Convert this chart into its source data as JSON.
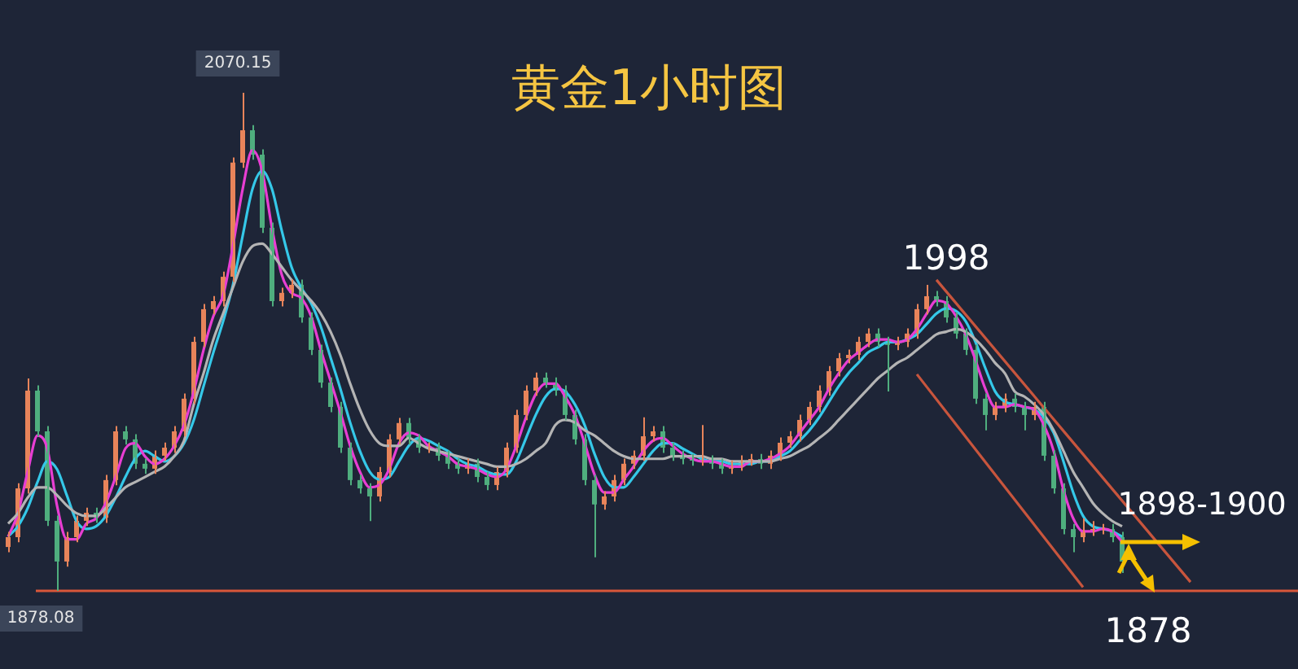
{
  "chart_data": {
    "type": "candlestick",
    "title": "黄金1小时图",
    "colors": [
      "#e8845a",
      "#e8845a",
      "#e8845a",
      "#4fae7e",
      "#4fae7e",
      "#4fae7e",
      "#e8845a",
      "#e8845a",
      "#e8845a",
      "#4fae7e",
      "#e8845a",
      "#e8845a",
      "#4fae7e",
      "#4fae7e",
      "#4fae7e",
      "#e8845a",
      "#e8845a",
      "#e8845a",
      "#e8845a",
      "#e8845a",
      "#e8845a",
      "#e8845a",
      "#e8845a",
      "#e8845a",
      "#e8845a",
      "#4fae7e",
      "#4fae7e",
      "#4fae7e",
      "#e8845a",
      "#e8845a",
      "#4fae7e",
      "#4fae7e",
      "#4fae7e",
      "#4fae7e",
      "#4fae7e",
      "#4fae7e",
      "#4fae7e",
      "#4fae7e",
      "#e8845a",
      "#e8845a",
      "#e8845a",
      "#4fae7e",
      "#4fae7e",
      "#e8845a",
      "#4fae7e",
      "#4fae7e",
      "#4fae7e",
      "#e8845a",
      "#4fae7e",
      "#4fae7e",
      "#e8845a",
      "#e8845a",
      "#e8845a",
      "#e8845a",
      "#e8845a",
      "#4fae7e",
      "#4fae7e",
      "#4fae7e",
      "#4fae7e",
      "#4fae7e",
      "#4fae7e",
      "#e8845a",
      "#e8845a",
      "#e8845a",
      "#e8845a",
      "#e8845a",
      "#e8845a",
      "#4fae7e",
      "#4fae7e",
      "#4fae7e",
      "#4fae7e",
      "#e8845a",
      "#4fae7e",
      "#4fae7e",
      "#e8845a",
      "#e8845a",
      "#e8845a",
      "#4fae7e",
      "#e8845a",
      "#e8845a",
      "#e8845a",
      "#e8845a",
      "#e8845a",
      "#e8845a",
      "#e8845a",
      "#e8845a",
      "#e8845a",
      "#e8845a",
      "#e8845a",
      "#4fae7e",
      "#4fae7e",
      "#e8845a",
      "#e8845a",
      "#e8845a",
      "#e8845a",
      "#4fae7e",
      "#4fae7e",
      "#4fae7e",
      "#4fae7e",
      "#4fae7e",
      "#4fae7e",
      "#e8845a",
      "#e8845a",
      "#4fae7e",
      "#4fae7e",
      "#e8845a",
      "#4fae7e",
      "#4fae7e",
      "#4fae7e",
      "#4fae7e",
      "#e8845a",
      "#e8845a",
      "#e8845a",
      "#4fae7e",
      "#4fae7e",
      null,
      null,
      null,
      null,
      null,
      null,
      null,
      null,
      null,
      null
    ],
    "legend": false,
    "tick_labels": false,
    "grid": false,
    "marker": "none",
    "categories": [
      null,
      null,
      null,
      null,
      null,
      null,
      null,
      null,
      null,
      null,
      null,
      null,
      null,
      null,
      null,
      null,
      null,
      null,
      null,
      null,
      null,
      null,
      null,
      null,
      null,
      null,
      null,
      null,
      null,
      null,
      null,
      null,
      null,
      null,
      null,
      null,
      null,
      null,
      null,
      null,
      null,
      null,
      null,
      null,
      null,
      null,
      null,
      null,
      null,
      null,
      null,
      null,
      null,
      null,
      null,
      null,
      null,
      null,
      null,
      null,
      null,
      null,
      null,
      null,
      null,
      null,
      null,
      null,
      null,
      null,
      null,
      null,
      null,
      null,
      null,
      null,
      null,
      null,
      null,
      null,
      null,
      null,
      null,
      null,
      null,
      null,
      null,
      null,
      null,
      null,
      null,
      null,
      null,
      null,
      null,
      null,
      null,
      null,
      null,
      null,
      null,
      null,
      null,
      null,
      null,
      null,
      null,
      null,
      null,
      null,
      null,
      null,
      null,
      null,
      null,
      null,
      null,
      null,
      null,
      null,
      null,
      null,
      null,
      null,
      null
    ],
    "ohlc": [
      [
        1895.0,
        1900.8,
        1893.0,
        1898.8
      ],
      [
        1898.8,
        1919.6,
        1896.8,
        1917.6
      ],
      [
        1917.6,
        1960.0,
        1915.6,
        1955.3
      ],
      [
        1955.3,
        1957.3,
        1937.6,
        1939.6
      ],
      [
        1939.6,
        1941.6,
        1903.1,
        1905.1
      ],
      [
        1905.1,
        1907.1,
        1878.08,
        1889.4
      ],
      [
        1889.4,
        1900.8,
        1887.4,
        1898.8
      ],
      [
        1898.8,
        1907.1,
        1896.8,
        1905.1
      ],
      [
        1905.1,
        1910.2,
        1903.1,
        1908.2
      ],
      [
        1908.2,
        1910.2,
        1904.3,
        1906.3
      ],
      [
        1906.3,
        1922.8,
        1904.3,
        1920.8
      ],
      [
        1920.8,
        1941.6,
        1918.8,
        1939.6
      ],
      [
        1939.6,
        1941.6,
        1934.5,
        1936.5
      ],
      [
        1936.5,
        1938.5,
        1925.1,
        1927.1
      ],
      [
        1927.1,
        1929.1,
        1923.2,
        1925.2
      ],
      [
        1925.2,
        1932.2,
        1923.2,
        1930.2
      ],
      [
        1930.2,
        1935.3,
        1928.2,
        1933.3
      ],
      [
        1933.3,
        1941.6,
        1931.3,
        1939.6
      ],
      [
        1939.6,
        1954.2,
        1937.6,
        1952.2
      ],
      [
        1952.2,
        1976.1,
        1950.2,
        1974.1
      ],
      [
        1974.1,
        1988.7,
        1972.1,
        1986.7
      ],
      [
        1986.7,
        1991.8,
        1984.7,
        1989.8
      ],
      [
        1989.8,
        2001.2,
        1987.8,
        1999.2
      ],
      [
        1999.2,
        2045.2,
        1997.2,
        2043.2
      ],
      [
        2043.2,
        2070.15,
        2041.2,
        2055.7
      ],
      [
        2055.7,
        2057.7,
        2044.3,
        2046.3
      ],
      [
        2046.3,
        2048.3,
        2016.1,
        2018.1
      ],
      [
        2018.1,
        2020.1,
        1987.8,
        1989.8
      ],
      [
        1989.8,
        1995.0,
        1987.8,
        1993.0
      ],
      [
        1993.0,
        1998.1,
        1991.0,
        1996.1
      ],
      [
        1996.1,
        1998.1,
        1981.5,
        1983.5
      ],
      [
        1983.5,
        1985.5,
        1969.0,
        1971.0
      ],
      [
        1971.0,
        1973.0,
        1956.4,
        1958.4
      ],
      [
        1958.4,
        1960.4,
        1947.0,
        1949.0
      ],
      [
        1949.0,
        1951.0,
        1931.3,
        1933.3
      ],
      [
        1933.3,
        1935.3,
        1918.8,
        1920.8
      ],
      [
        1920.8,
        1922.8,
        1915.6,
        1917.6
      ],
      [
        1917.6,
        1919.6,
        1905.0,
        1914.5
      ],
      [
        1914.5,
        1925.9,
        1912.5,
        1923.9
      ],
      [
        1923.9,
        1938.5,
        1921.9,
        1936.5
      ],
      [
        1936.5,
        1944.8,
        1934.5,
        1942.8
      ],
      [
        1942.8,
        1944.8,
        1934.5,
        1936.5
      ],
      [
        1936.5,
        1938.5,
        1931.3,
        1933.3
      ],
      [
        1933.3,
        1935.3,
        1931.3,
        1933.3
      ],
      [
        1933.3,
        1935.3,
        1928.2,
        1930.2
      ],
      [
        1930.2,
        1932.2,
        1925.1,
        1927.1
      ],
      [
        1927.1,
        1929.1,
        1923.2,
        1925.2
      ],
      [
        1925.2,
        1929.1,
        1923.2,
        1927.1
      ],
      [
        1927.1,
        1929.1,
        1920.0,
        1922.0
      ],
      [
        1922.0,
        1924.0,
        1916.9,
        1918.9
      ],
      [
        1918.9,
        1925.9,
        1916.9,
        1923.9
      ],
      [
        1923.9,
        1935.3,
        1921.9,
        1933.3
      ],
      [
        1933.3,
        1947.9,
        1931.3,
        1945.9
      ],
      [
        1945.9,
        1957.3,
        1943.9,
        1955.3
      ],
      [
        1955.3,
        1962.3,
        1953.3,
        1960.3
      ],
      [
        1960.3,
        1962.3,
        1956.4,
        1958.4
      ],
      [
        1958.4,
        1960.4,
        1953.3,
        1955.3
      ],
      [
        1955.3,
        1957.3,
        1943.9,
        1945.9
      ],
      [
        1945.9,
        1947.9,
        1934.5,
        1936.5
      ],
      [
        1936.5,
        1938.5,
        1918.8,
        1920.8
      ],
      [
        1920.8,
        1922.8,
        1891.0,
        1911.4
      ],
      [
        1911.4,
        1916.5,
        1909.4,
        1914.5
      ],
      [
        1914.5,
        1922.8,
        1912.5,
        1920.8
      ],
      [
        1920.8,
        1929.1,
        1918.8,
        1927.1
      ],
      [
        1927.1,
        1932.2,
        1925.1,
        1930.2
      ],
      [
        1930.2,
        1945.0,
        1928.2,
        1937.7
      ],
      [
        1937.7,
        1941.6,
        1935.7,
        1939.6
      ],
      [
        1939.6,
        1941.6,
        1931.3,
        1933.3
      ],
      [
        1933.3,
        1935.3,
        1928.2,
        1930.2
      ],
      [
        1930.2,
        1932.2,
        1926.9,
        1928.9
      ],
      [
        1928.9,
        1930.9,
        1926.3,
        1928.3
      ],
      [
        1928.3,
        1942.0,
        1926.3,
        1928.3
      ],
      [
        1928.3,
        1930.3,
        1925.1,
        1927.1
      ],
      [
        1927.1,
        1929.1,
        1923.2,
        1925.2
      ],
      [
        1925.2,
        1928.4,
        1923.2,
        1926.4
      ],
      [
        1926.4,
        1930.3,
        1924.4,
        1928.3
      ],
      [
        1928.3,
        1930.9,
        1926.3,
        1928.9
      ],
      [
        1928.9,
        1930.9,
        1925.1,
        1927.1
      ],
      [
        1927.1,
        1932.2,
        1925.1,
        1930.2
      ],
      [
        1930.2,
        1937.2,
        1928.2,
        1935.2
      ],
      [
        1935.2,
        1939.7,
        1933.2,
        1937.7
      ],
      [
        1937.7,
        1946.0,
        1935.7,
        1944.0
      ],
      [
        1944.0,
        1951.0,
        1942.0,
        1949.0
      ],
      [
        1949.0,
        1957.3,
        1947.0,
        1955.3
      ],
      [
        1955.3,
        1964.8,
        1953.3,
        1962.8
      ],
      [
        1962.8,
        1969.8,
        1960.8,
        1967.8
      ],
      [
        1967.8,
        1971.1,
        1965.8,
        1969.1
      ],
      [
        1969.1,
        1976.1,
        1967.1,
        1974.1
      ],
      [
        1974.1,
        1979.3,
        1972.1,
        1977.3
      ],
      [
        1977.3,
        1979.3,
        1972.1,
        1974.1
      ],
      [
        1974.1,
        1976.1,
        1955.0,
        1972.9
      ],
      [
        1972.9,
        1976.1,
        1970.9,
        1974.1
      ],
      [
        1974.1,
        1979.3,
        1972.1,
        1977.3
      ],
      [
        1977.3,
        1988.7,
        1975.3,
        1986.7
      ],
      [
        1986.7,
        1996.1,
        1984.7,
        1991.7
      ],
      [
        1991.7,
        1993.7,
        1987.8,
        1989.8
      ],
      [
        1989.8,
        1991.8,
        1981.5,
        1983.5
      ],
      [
        1983.5,
        1985.5,
        1975.3,
        1977.3
      ],
      [
        1977.3,
        1979.3,
        1969.0,
        1971.0
      ],
      [
        1971.0,
        1973.0,
        1950.2,
        1952.2
      ],
      [
        1952.2,
        1954.2,
        1940.0,
        1945.9
      ],
      [
        1945.9,
        1951.0,
        1943.9,
        1949.0
      ],
      [
        1949.0,
        1954.2,
        1947.0,
        1952.2
      ],
      [
        1952.2,
        1954.2,
        1947.0,
        1949.0
      ],
      [
        1949.0,
        1951.0,
        1940.0,
        1945.9
      ],
      [
        1945.9,
        1951.0,
        1943.9,
        1949.0
      ],
      [
        1949.0,
        1951.0,
        1928.2,
        1930.2
      ],
      [
        1930.2,
        1932.2,
        1915.6,
        1917.6
      ],
      [
        1917.6,
        1919.6,
        1899.9,
        1901.9
      ],
      [
        1901.9,
        1903.9,
        1893.0,
        1898.8
      ],
      [
        1898.8,
        1906.0,
        1896.8,
        1901.3
      ],
      [
        1901.3,
        1905.0,
        1899.3,
        1901.9
      ],
      [
        1901.9,
        1903.9,
        1899.9,
        1901.9
      ],
      [
        1901.9,
        1903.9,
        1896.8,
        1898.8
      ],
      [
        1898.8,
        1900.8,
        1885.0,
        1889.4
      ],
      null,
      null,
      null,
      null,
      null,
      null,
      null,
      null,
      null,
      null
    ],
    "series": [
      {
        "type": "line",
        "color": "#b4b4b4",
        "values": [
          1904,
          1908,
          1914,
          1918,
          1918,
          1915,
          1911,
          1908,
          1907,
          1907,
          1910,
          1914,
          1918,
          1920,
          1922,
          1924,
          1926,
          1930,
          1936,
          1950,
          1962,
          1975,
          1985,
          1995,
          2005,
          2011,
          2012,
          2008,
          2003,
          1998,
          1994,
          1990,
          1985,
          1978,
          1969,
          1958,
          1948,
          1940,
          1935,
          1934,
          1934,
          1937,
          1935,
          1933,
          1932,
          1931,
          1930,
          1929,
          1928,
          1927,
          1926,
          1926,
          1927,
          1929,
          1932,
          1935,
          1942,
          1944,
          1943,
          1940,
          1938,
          1935,
          1932,
          1930,
          1929,
          1929,
          1929,
          1929,
          1930,
          1930,
          1930,
          1930,
          1929,
          1929,
          1928,
          1928,
          1928,
          1928,
          1928,
          1929,
          1930,
          1932,
          1934,
          1937,
          1940,
          1944,
          1948,
          1952,
          1956,
          1960,
          1963,
          1966,
          1968,
          1971,
          1974,
          1977,
          1978,
          1979,
          1978,
          1975,
          1971,
          1966,
          1962,
          1955,
          1953,
          1950,
          1946,
          1940,
          1932,
          1924,
          1918,
          1912,
          1908,
          1905,
          1903,
          null,
          null,
          null,
          null,
          null,
          null,
          null,
          null,
          null,
          null
        ]
      },
      {
        "type": "line",
        "color": "#e83ed3",
        "values": [
          1899,
          1908,
          1924,
          1938,
          1933,
          1911,
          1898,
          1898,
          1904,
          1906,
          1912,
          1922,
          1933,
          1935,
          1930,
          1927,
          1929,
          1934,
          1942,
          1955,
          1971,
          1984,
          1992,
          2011,
          2033,
          2048,
          2040,
          2018,
          2000,
          1993,
          1991,
          1984,
          1971,
          1959,
          1947,
          1934,
          1924,
          1918,
          1919,
          1925,
          1935,
          1939,
          1938,
          1934,
          1932,
          1930,
          1927,
          1926,
          1925,
          1923,
          1922,
          1925,
          1934,
          1945,
          1954,
          1958,
          1958,
          1953,
          1946,
          1935,
          1923,
          1916,
          1916,
          1921,
          1926,
          1932,
          1936,
          1937,
          1934,
          1931,
          1929,
          1928,
          1928,
          1927,
          1926,
          1926,
          1928,
          1928,
          1929,
          1931,
          1934,
          1939,
          1944,
          1949,
          1956,
          1962,
          1967,
          1970,
          1973,
          1975,
          1975,
          1974,
          1975,
          1979,
          1985,
          1990,
          1989,
          1984,
          1977,
          1967,
          1956,
          1949,
          1949,
          1950,
          1949,
          1948,
          1942,
          1932,
          1917,
          1906,
          1901,
          1901,
          1902,
          1901,
          1897,
          null,
          null,
          null,
          null,
          null,
          null,
          null,
          null,
          null,
          null
        ]
      },
      {
        "type": "line",
        "color": "#35c8e8",
        "values": [
          1899,
          1903,
          1910,
          1920,
          1928,
          1925,
          1915,
          1905,
          1902,
          1903,
          1907,
          1914,
          1922,
          1929,
          1932,
          1930,
          1928,
          1930,
          1935,
          1944,
          1957,
          1970,
          1982,
          1996,
          2015,
          2033,
          2040,
          2033,
          2017,
          2003,
          1995,
          1989,
          1980,
          1968,
          1956,
          1943,
          1932,
          1924,
          1921,
          1922,
          1928,
          1934,
          1937,
          1936,
          1934,
          1932,
          1929,
          1927,
          1926,
          1924,
          1923,
          1923,
          1928,
          1937,
          1946,
          1953,
          1956,
          1955,
          1950,
          1942,
          1931,
          1922,
          1918,
          1918,
          1922,
          1927,
          1932,
          1935,
          1935,
          1933,
          1931,
          1929,
          1928,
          1928,
          1927,
          1927,
          1927,
          1928,
          1928,
          1930,
          1932,
          1936,
          1940,
          1945,
          1951,
          1957,
          1962,
          1966,
          1970,
          1972,
          1974,
          1974,
          1975,
          1977,
          1981,
          1985,
          1987,
          1986,
          1982,
          1974,
          1964,
          1955,
          1951,
          1950,
          1949,
          1948,
          1945,
          1939,
          1928,
          1916,
          1907,
          1903,
          1902,
          1901,
          1899,
          null,
          null,
          null,
          null,
          null,
          null,
          null,
          null,
          null,
          null
        ]
      },
      {
        "type": "line",
        "color": "#c8553d",
        "values": [
          null,
          null,
          null,
          null,
          null,
          null,
          null,
          null,
          null,
          null,
          null,
          null,
          null,
          null,
          null,
          null,
          null,
          null,
          null,
          null,
          null,
          null,
          null,
          null,
          null,
          null,
          null,
          null,
          null,
          null,
          null,
          null,
          null,
          null,
          null,
          null,
          null,
          null,
          null,
          null,
          null,
          null,
          null,
          null,
          null,
          null,
          null,
          null,
          null,
          null,
          null,
          null,
          null,
          null,
          null,
          null,
          null,
          null,
          null,
          null,
          null,
          null,
          null,
          null,
          null,
          null,
          null,
          null,
          null,
          null,
          null,
          null,
          null,
          null,
          null,
          null,
          null,
          null,
          null,
          null,
          null,
          null,
          null,
          null,
          null,
          null,
          null,
          null,
          null,
          null,
          null,
          null,
          null,
          null,
          null,
          1998,
          null,
          null,
          null,
          null,
          null,
          null,
          null,
          null,
          null,
          null,
          null,
          null,
          null,
          null,
          null,
          null,
          null,
          null,
          null,
          null,
          null,
          null,
          null,
          null,
          null,
          1881.5,
          null,
          null,
          null
        ]
      },
      {
        "type": "line",
        "color": "#c8553d",
        "values": [
          null,
          null,
          null,
          null,
          null,
          null,
          null,
          null,
          null,
          null,
          null,
          null,
          null,
          null,
          null,
          null,
          null,
          null,
          null,
          null,
          null,
          null,
          null,
          null,
          null,
          null,
          null,
          null,
          null,
          null,
          null,
          null,
          null,
          null,
          null,
          null,
          null,
          null,
          null,
          null,
          null,
          null,
          null,
          null,
          null,
          null,
          null,
          null,
          null,
          null,
          null,
          null,
          null,
          null,
          null,
          null,
          null,
          null,
          null,
          null,
          null,
          null,
          null,
          null,
          null,
          null,
          null,
          null,
          null,
          null,
          null,
          null,
          null,
          null,
          null,
          null,
          null,
          null,
          null,
          null,
          null,
          null,
          null,
          null,
          null,
          null,
          null,
          null,
          null,
          null,
          null,
          null,
          null,
          1961.6,
          null,
          null,
          null,
          null,
          null,
          null,
          null,
          null,
          null,
          null,
          null,
          null,
          null,
          null,
          null,
          null,
          1879.5,
          null,
          null,
          null,
          null,
          null,
          null,
          null,
          null,
          null,
          null,
          null,
          null,
          null,
          null
        ]
      }
    ],
    "ref_lines": [
      {
        "axis": "y",
        "value": 1878.08,
        "color": "#d9573a"
      }
    ],
    "annotations": [
      {
        "text": "2070.15",
        "y": 2070.15
      },
      {
        "text": "1878.08",
        "y": 1878.08
      },
      {
        "text": "1998",
        "y": 1998
      },
      "1898-1900",
      {
        "text": "1878",
        "y": 1878
      }
    ]
  }
}
